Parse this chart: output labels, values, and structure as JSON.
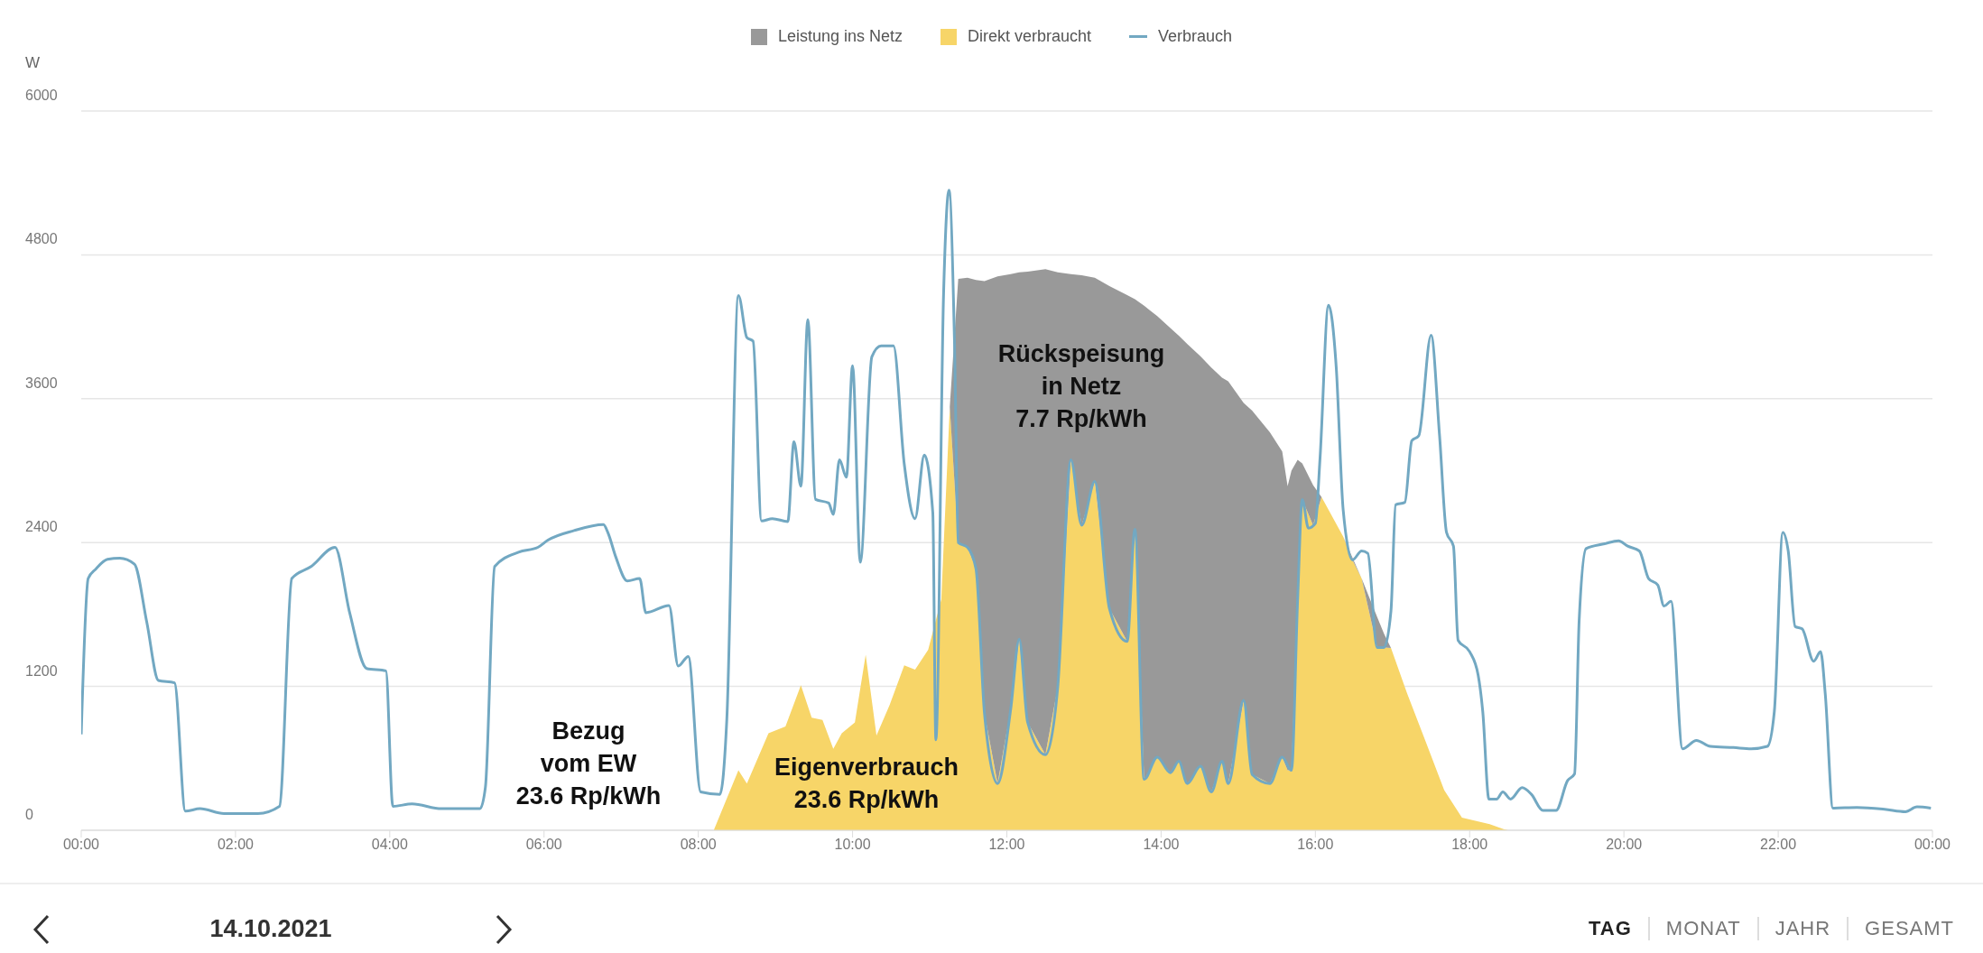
{
  "chart_data": {
    "type": "area",
    "stacked": true,
    "subtitle": "14.10.2021",
    "ylabel": "W",
    "legend": "top",
    "grid": "y",
    "ylim": [
      0,
      6000
    ],
    "yticks": [
      0,
      1200,
      2400,
      3600,
      4800,
      6000
    ],
    "xlim": [
      0,
      24
    ],
    "xticks": [
      {
        "value": 0,
        "label": "00:00"
      },
      {
        "value": 2,
        "label": "02:00"
      },
      {
        "value": 4,
        "label": "04:00"
      },
      {
        "value": 6,
        "label": "06:00"
      },
      {
        "value": 8,
        "label": "08:00"
      },
      {
        "value": 10,
        "label": "10:00"
      },
      {
        "value": 12,
        "label": "12:00"
      },
      {
        "value": 14,
        "label": "14:00"
      },
      {
        "value": 16,
        "label": "16:00"
      },
      {
        "value": 18,
        "label": "18:00"
      },
      {
        "value": 20,
        "label": "20:00"
      },
      {
        "value": 22,
        "label": "22:00"
      },
      {
        "value": 24,
        "label": "00:00"
      }
    ],
    "x": [
      8.2,
      8.52,
      8.63,
      8.91,
      9.13,
      9.33,
      9.47,
      9.61,
      9.75,
      9.86,
      10.03,
      10.17,
      10.31,
      10.48,
      10.67,
      10.81,
      10.98,
      11.15,
      11.26,
      11.37,
      11.49,
      11.6,
      11.71,
      11.88,
      12.05,
      12.16,
      12.27,
      12.5,
      12.66,
      12.83,
      12.97,
      13.14,
      13.33,
      13.56,
      13.66,
      13.78,
      13.95,
      14.12,
      14.23,
      14.34,
      14.51,
      14.65,
      14.79,
      14.87,
      15.07,
      15.18,
      15.41,
      15.57,
      15.64,
      15.69,
      15.77,
      15.83,
      15.97,
      16.08,
      16.36,
      16.48,
      16.6,
      16.8,
      16.89,
      16.98,
      17.19,
      17.43,
      17.67,
      17.9,
      18.26,
      18.44,
      18.5
    ],
    "series": [
      {
        "name": "Direkt verbraucht",
        "color": "#f7d568",
        "values": [
          0,
          500,
          390,
          810,
          865,
          1210,
          940,
          920,
          680,
          810,
          900,
          1465,
          790,
          1045,
          1375,
          1340,
          1505,
          1925,
          3530,
          2400,
          2360,
          2180,
          975,
          390,
          1010,
          1595,
          900,
          630,
          1195,
          3090,
          2545,
          2910,
          1850,
          1575,
          2510,
          425,
          610,
          480,
          575,
          390,
          535,
          320,
          575,
          390,
          1085,
          465,
          390,
          610,
          500,
          500,
          1925,
          2760,
          2545,
          2780,
          2450,
          2255,
          2100,
          1525,
          1525,
          1520,
          1140,
          740,
          335,
          105,
          50,
          10,
          0
        ]
      },
      {
        "name": "Leistung ins Netz",
        "color": "#999999",
        "values": [
          0,
          0,
          0,
          0,
          0,
          0,
          0,
          0,
          0,
          0,
          0,
          0,
          0,
          0,
          0,
          0,
          0,
          0,
          0,
          2200,
          2250,
          2410,
          3605,
          4230,
          3630,
          3060,
          3760,
          4050,
          3460,
          1550,
          2085,
          1700,
          2690,
          2890,
          1920,
          3950,
          3680,
          3710,
          3550,
          3665,
          3420,
          3540,
          3200,
          3355,
          2480,
          3035,
          2930,
          2550,
          2370,
          2500,
          1165,
          300,
          335,
          0,
          0,
          20,
          0,
          255,
          115,
          0,
          0,
          0,
          0,
          0,
          0,
          0,
          0
        ]
      },
      {
        "name": "Verbrauch",
        "type": "line",
        "color": "#72a8c2",
        "x": [
          0,
          0.09,
          0.19,
          0.34,
          0.5,
          0.69,
          0.85,
          1.0,
          1.21,
          1.35,
          1.54,
          1.85,
          2.29,
          2.57,
          2.73,
          2.98,
          3.29,
          3.48,
          3.7,
          3.95,
          4.04,
          4.29,
          4.67,
          5.17,
          5.24,
          5.36,
          5.67,
          5.92,
          6.05,
          6.39,
          6.77,
          6.83,
          6.93,
          7.08,
          7.24,
          7.32,
          7.62,
          7.74,
          7.87,
          8.03,
          8.28,
          8.37,
          8.52,
          8.63,
          8.71,
          8.82,
          8.96,
          9.16,
          9.24,
          9.33,
          9.42,
          9.52,
          9.69,
          9.75,
          9.83,
          9.92,
          10.0,
          10.1,
          10.25,
          10.37,
          10.53,
          10.67,
          10.81,
          10.93,
          11.04,
          11.08,
          11.18,
          11.25,
          11.32,
          11.37,
          11.49,
          11.6,
          11.71,
          11.88,
          12.05,
          12.16,
          12.27,
          12.5,
          12.66,
          12.83,
          12.97,
          13.14,
          13.33,
          13.56,
          13.66,
          13.78,
          13.95,
          14.12,
          14.23,
          14.34,
          14.51,
          14.65,
          14.79,
          14.87,
          15.07,
          15.18,
          15.41,
          15.57,
          15.69,
          15.77,
          15.83,
          15.91,
          16.0,
          16.06,
          16.17,
          16.27,
          16.36,
          16.48,
          16.6,
          16.68,
          16.8,
          16.89,
          16.98,
          17.04,
          17.16,
          17.25,
          17.34,
          17.5,
          17.61,
          17.7,
          17.79,
          17.85,
          18.0,
          18.11,
          18.17,
          18.25,
          18.35,
          18.43,
          18.53,
          18.68,
          18.8,
          18.95,
          19.12,
          19.27,
          19.36,
          19.42,
          19.51,
          19.75,
          19.93,
          20.05,
          20.2,
          20.32,
          20.44,
          20.52,
          20.61,
          20.76,
          20.94,
          21.12,
          21.42,
          21.65,
          21.86,
          21.95,
          22.06,
          22.13,
          22.22,
          22.31,
          22.46,
          22.55,
          22.61,
          22.71,
          23.02,
          23.38,
          23.65,
          23.8,
          23.98
        ],
        "values": [
          800,
          2100,
          2180,
          2260,
          2270,
          2220,
          1735,
          1250,
          1230,
          160,
          180,
          140,
          140,
          200,
          2100,
          2200,
          2360,
          1815,
          1350,
          1330,
          200,
          220,
          180,
          180,
          360,
          2200,
          2320,
          2360,
          2420,
          2500,
          2550,
          2480,
          2280,
          2080,
          2100,
          1815,
          1875,
          1370,
          1450,
          320,
          300,
          930,
          4460,
          4110,
          4080,
          2580,
          2600,
          2575,
          3240,
          2870,
          4260,
          2760,
          2730,
          2635,
          3090,
          2945,
          3875,
          2235,
          3950,
          4040,
          4040,
          3055,
          2600,
          3130,
          2650,
          755,
          4480,
          5340,
          4110,
          2400,
          2360,
          2180,
          975,
          390,
          1010,
          1595,
          900,
          630,
          1195,
          3090,
          2545,
          2910,
          1850,
          1575,
          2510,
          425,
          610,
          480,
          575,
          390,
          535,
          320,
          575,
          390,
          1085,
          465,
          390,
          610,
          500,
          1925,
          2760,
          2520,
          2560,
          3100,
          4380,
          3865,
          2675,
          2255,
          2330,
          2310,
          1525,
          1525,
          1830,
          2715,
          2735,
          3250,
          3290,
          4130,
          3290,
          2485,
          2370,
          1585,
          1490,
          1295,
          990,
          260,
          260,
          320,
          260,
          355,
          300,
          165,
          165,
          415,
          470,
          1755,
          2350,
          2390,
          2415,
          2370,
          2330,
          2100,
          2045,
          1870,
          1910,
          680,
          750,
          700,
          690,
          680,
          700,
          990,
          2485,
          2330,
          1700,
          1680,
          1410,
          1490,
          1140,
          185,
          190,
          175,
          155,
          195,
          185
        ]
      }
    ],
    "annotations": [
      "Bezug\nvom EW\n23.6 Rp/kWh",
      "Eigenverbrauch\n23.6 Rp/kWh",
      "Rückspeisung\nin Netz\n7.7 Rp/kWh",
      "TAG",
      "MONAT",
      "JAHR",
      "GESAMT"
    ]
  }
}
